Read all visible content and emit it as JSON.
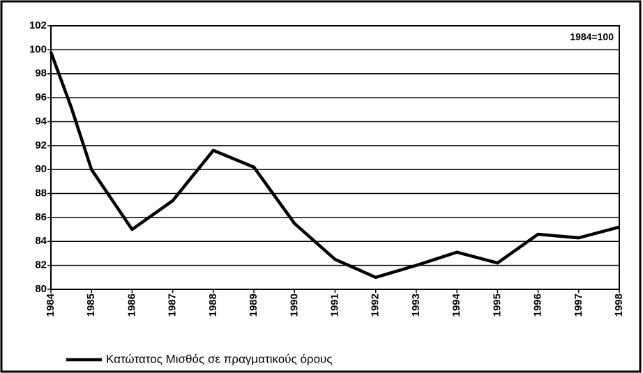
{
  "chart_data": {
    "type": "line",
    "annotation": "1984=100",
    "x": [
      1984,
      1984.5,
      1985,
      1986,
      1987,
      1988,
      1989,
      1990,
      1990.5,
      1991,
      1992,
      1993,
      1994,
      1995,
      1996,
      1997,
      1998
    ],
    "series": [
      {
        "name": "Κατώτατος Μισθός σε πραγματικούς όρους",
        "color": "#000000",
        "values": [
          99.8,
          95.2,
          90.0,
          85.0,
          87.4,
          91.6,
          90.2,
          85.5,
          84.0,
          82.5,
          81.0,
          82.0,
          83.1,
          82.2,
          84.6,
          84.3,
          85.2
        ]
      }
    ],
    "xlim": [
      1984,
      1998
    ],
    "xticks": [
      1984,
      1985,
      1986,
      1987,
      1988,
      1989,
      1990,
      1991,
      1992,
      1993,
      1994,
      1995,
      1996,
      1997,
      1998
    ],
    "ylim": [
      80,
      102
    ],
    "yticks": [
      80,
      82,
      84,
      86,
      88,
      90,
      92,
      94,
      96,
      98,
      100,
      102
    ],
    "grid": true
  }
}
